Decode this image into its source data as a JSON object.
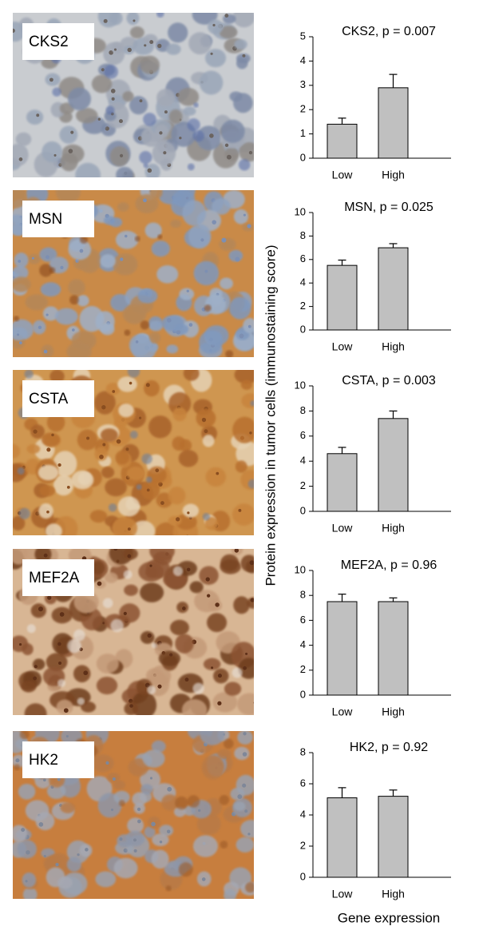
{
  "image_labels": [
    "CKS2",
    "MSN",
    "CSTA",
    "MEF2A",
    "HK2"
  ],
  "shared_ylabel": "Protein expression in tumor cells (immunostaining score)",
  "shared_xlabel": "Gene expression",
  "chart_data": [
    {
      "type": "bar",
      "title": "CKS2, p = 0.007",
      "categories": [
        "Low",
        "High"
      ],
      "values": [
        1.4,
        2.9
      ],
      "errors": [
        0.25,
        0.55
      ],
      "color": "#c0c0c0",
      "ylim": [
        0,
        5
      ],
      "yticks": [
        0,
        1,
        2,
        3,
        4,
        5
      ]
    },
    {
      "type": "bar",
      "title": "MSN, p = 0.025",
      "categories": [
        "Low",
        "High"
      ],
      "values": [
        5.5,
        7.0
      ],
      "errors": [
        0.45,
        0.35
      ],
      "color": "#c0c0c0",
      "ylim": [
        0,
        10
      ],
      "yticks": [
        0,
        2,
        4,
        6,
        8,
        10
      ]
    },
    {
      "type": "bar",
      "title": "CSTA, p = 0.003",
      "categories": [
        "Low",
        "High"
      ],
      "values": [
        4.6,
        7.4
      ],
      "errors": [
        0.5,
        0.6
      ],
      "color": "#c0c0c0",
      "ylim": [
        0,
        10
      ],
      "yticks": [
        0,
        2,
        4,
        6,
        8,
        10
      ]
    },
    {
      "type": "bar",
      "title": "MEF2A, p = 0.96",
      "categories": [
        "Low",
        "High"
      ],
      "values": [
        7.5,
        7.5
      ],
      "errors": [
        0.6,
        0.3
      ],
      "color": "#c0c0c0",
      "ylim": [
        0,
        10
      ],
      "yticks": [
        0,
        2,
        4,
        6,
        8,
        10
      ]
    },
    {
      "type": "bar",
      "title": "HK2, p = 0.92",
      "categories": [
        "Low",
        "High"
      ],
      "values": [
        5.1,
        5.2
      ],
      "errors": [
        0.65,
        0.4
      ],
      "color": "#c0c0c0",
      "ylim": [
        0,
        8
      ],
      "yticks": [
        0,
        2,
        4,
        6,
        8
      ]
    }
  ]
}
